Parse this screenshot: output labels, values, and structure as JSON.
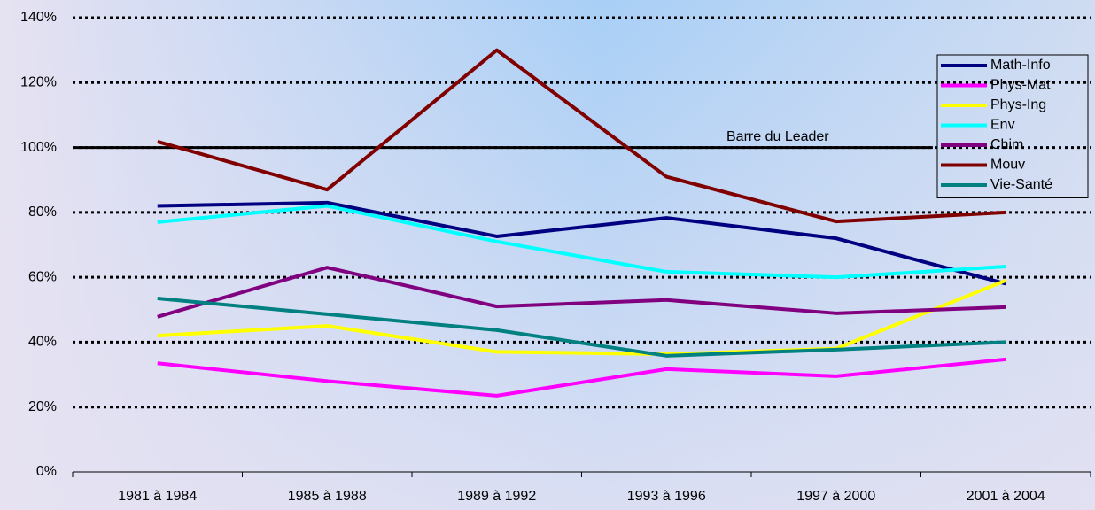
{
  "chart_data": {
    "type": "line",
    "categories": [
      "1981 à 1984",
      "1985 à 1988",
      "1989 à 1992",
      "1993 à 1996",
      "1997 à 2000",
      "2001 à 2004"
    ],
    "series": [
      {
        "name": "Math-Info",
        "color": "#000080",
        "values": [
          82,
          83,
          72.6,
          78.3,
          72,
          58
        ]
      },
      {
        "name": "Phys-Mat",
        "color": "#ff00ff",
        "values": [
          33.5,
          28,
          23.5,
          31.7,
          29.5,
          34.7
        ]
      },
      {
        "name": "Phys-Ing",
        "color": "#ffff00",
        "values": [
          42,
          45,
          37,
          36.3,
          38,
          59
        ]
      },
      {
        "name": "Env",
        "color": "#00ffff",
        "values": [
          77,
          82,
          71,
          61.7,
          60,
          63.3
        ]
      },
      {
        "name": "Chim",
        "color": "#800080",
        "values": [
          47.8,
          63,
          51,
          53,
          48.9,
          50.8
        ]
      },
      {
        "name": "Mouv",
        "color": "#800000",
        "values": [
          101.8,
          87,
          130,
          91,
          77.2,
          80
        ]
      },
      {
        "name": "Vie-Santé",
        "color": "#008080",
        "values": [
          53.5,
          48.6,
          43.7,
          35.8,
          37.7,
          40
        ]
      }
    ],
    "leader_line": {
      "value": 100,
      "label": "Barre du Leader"
    },
    "ylim": [
      0,
      140
    ],
    "yticks": [
      {
        "value": 0,
        "label": "0%"
      },
      {
        "value": 20,
        "label": "20%"
      },
      {
        "value": 40,
        "label": "40%"
      },
      {
        "value": 60,
        "label": "60%"
      },
      {
        "value": 80,
        "label": "80%"
      },
      {
        "value": 100,
        "label": "100%"
      },
      {
        "value": 120,
        "label": "120%"
      },
      {
        "value": 140,
        "label": "140%"
      }
    ],
    "grid": true,
    "legend": "right"
  }
}
